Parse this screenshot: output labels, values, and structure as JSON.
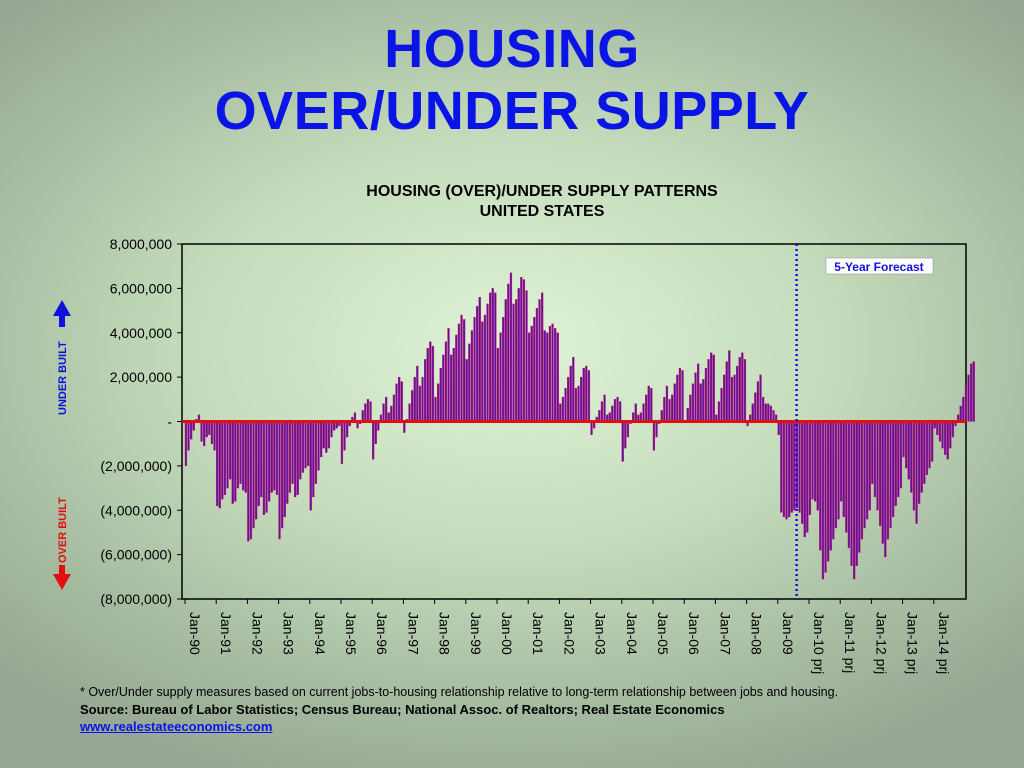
{
  "slide": {
    "title_line1": "HOUSING",
    "title_line2": "OVER/UNDER SUPPLY"
  },
  "side_labels": {
    "under_built": "UNDER BUILT",
    "over_built": "OVER BUILT",
    "under_color": "#1010dd",
    "over_color": "#e01010"
  },
  "footer": {
    "note": "* Over/Under supply measures based on current jobs-to-housing relationship relative to long-term relationship between jobs and housing.",
    "source": "Source: Bureau of Labor Statistics; Census Bureau; National Assoc. of Realtors; Real Estate Economics",
    "link": "www.realestateeconomics.com"
  },
  "chart_data": {
    "type": "bar",
    "title": "HOUSING (OVER)/UNDER SUPPLY PATTERNS",
    "subtitle": "UNITED STATES",
    "ylim": [
      -8000000,
      8000000
    ],
    "y_ticks": [
      8000000,
      6000000,
      4000000,
      2000000,
      0,
      -2000000,
      -4000000,
      -6000000,
      -8000000
    ],
    "y_tick_labels": [
      "8,000,000",
      "6,000,000",
      "4,000,000",
      "2,000,000",
      "-",
      "(2,000,000)",
      "(4,000,000)",
      "(6,000,000)",
      "(8,000,000)"
    ],
    "x_tick_labels": [
      "Jan-90",
      "Jan-91",
      "Jan-92",
      "Jan-93",
      "Jan-94",
      "Jan-95",
      "Jan-96",
      "Jan-97",
      "Jan-98",
      "Jan-99",
      "Jan-00",
      "Jan-01",
      "Jan-02",
      "Jan-03",
      "Jan-04",
      "Jan-05",
      "Jan-06",
      "Jan-07",
      "Jan-08",
      "Jan-09",
      "Jan-10 prj",
      "Jan-11 prj",
      "Jan-12 prj",
      "Jan-13 prj",
      "Jan-14 prj"
    ],
    "annotation": "5-Year Forecast",
    "forecast_start": "Sep-09",
    "bar_color": "#5a12a8",
    "zero_line_color": "#e01010",
    "grid": false,
    "series": [
      {
        "values": [
          -2000000,
          -1300000,
          -800000,
          -400000,
          100000,
          300000,
          -900000,
          -1100000,
          -700000,
          -600000,
          -1000000,
          -1300000,
          -3800000,
          -3900000,
          -3500000,
          -3300000,
          -3000000,
          -2600000,
          -3700000,
          -3600000,
          -3000000,
          -2800000,
          -3100000,
          -3200000,
          -5400000,
          -5300000,
          -4800000,
          -4400000,
          -3800000,
          -3400000,
          -4200000,
          -4100000,
          -3600000,
          -3200000,
          -3100000,
          -3300000,
          -5300000,
          -4800000,
          -4300000,
          -3700000,
          -3200000,
          -2800000,
          -3400000,
          -3300000,
          -2600000,
          -2300000,
          -2100000,
          -2000000,
          -4000000,
          -3400000,
          -2800000,
          -2200000,
          -1600000,
          -1200000,
          -1400000,
          -1200000,
          -700000,
          -400000,
          -300000,
          -200000,
          -1900000,
          -1300000,
          -700000,
          -200000,
          200000,
          400000,
          -300000,
          -100000,
          500000,
          800000,
          1000000,
          900000,
          -1700000,
          -1000000,
          -400000,
          300000,
          800000,
          1100000,
          400000,
          700000,
          1200000,
          1700000,
          2000000,
          1800000,
          -500000,
          100000,
          800000,
          1400000,
          2000000,
          2500000,
          1600000,
          2000000,
          2800000,
          3300000,
          3600000,
          3400000,
          1100000,
          1700000,
          2400000,
          3000000,
          3600000,
          4200000,
          3000000,
          3300000,
          3900000,
          4400000,
          4800000,
          4600000,
          2800000,
          3500000,
          4100000,
          4700000,
          5200000,
          5600000,
          4500000,
          4800000,
          5300000,
          5800000,
          6000000,
          5800000,
          3300000,
          4000000,
          4700000,
          5500000,
          6200000,
          6700000,
          5300000,
          5500000,
          6000000,
          6500000,
          6400000,
          5900000,
          4000000,
          4300000,
          4700000,
          5100000,
          5500000,
          5800000,
          4100000,
          4000000,
          4300000,
          4400000,
          4200000,
          4000000,
          800000,
          1100000,
          1500000,
          2000000,
          2500000,
          2900000,
          1500000,
          1600000,
          2000000,
          2400000,
          2500000,
          2300000,
          -600000,
          -300000,
          200000,
          500000,
          900000,
          1200000,
          300000,
          400000,
          700000,
          1000000,
          1100000,
          900000,
          -1800000,
          -1200000,
          -700000,
          -100000,
          400000,
          800000,
          300000,
          400000,
          800000,
          1200000,
          1600000,
          1500000,
          -1300000,
          -700000,
          -100000,
          500000,
          1100000,
          1600000,
          1000000,
          1200000,
          1700000,
          2100000,
          2400000,
          2300000,
          0,
          600000,
          1200000,
          1700000,
          2200000,
          2600000,
          1700000,
          1900000,
          2400000,
          2800000,
          3100000,
          3000000,
          300000,
          900000,
          1500000,
          2100000,
          2700000,
          3200000,
          2000000,
          2100000,
          2500000,
          2900000,
          3100000,
          2800000,
          -200000,
          300000,
          800000,
          1300000,
          1800000,
          2100000,
          1100000,
          800000,
          800000,
          700000,
          500000,
          300000,
          -600000,
          -4100000,
          -4300000,
          -4400000,
          -4300000,
          -4100000,
          -4000000,
          -3900000,
          -4100000,
          -4600000,
          -5200000,
          -5000000,
          -4200000,
          -3500000,
          -3600000,
          -4000000,
          -5800000,
          -7100000,
          -6800000,
          -6300000,
          -5800000,
          -5300000,
          -4800000,
          -4400000,
          -3600000,
          -4300000,
          -5000000,
          -5700000,
          -6500000,
          -7100000,
          -6500000,
          -5900000,
          -5300000,
          -4800000,
          -4400000,
          -4000000,
          -2800000,
          -3400000,
          -4000000,
          -4700000,
          -5500000,
          -6100000,
          -5300000,
          -4800000,
          -4300000,
          -3800000,
          -3400000,
          -3000000,
          -1600000,
          -2100000,
          -2600000,
          -3200000,
          -4000000,
          -4600000,
          -3700000,
          -3200000,
          -2800000,
          -2400000,
          -2100000,
          -1800000,
          -300000,
          -600000,
          -900000,
          -1200000,
          -1500000,
          -1700000,
          -1200000,
          -700000,
          -200000,
          300000,
          700000,
          1100000,
          1600000,
          2100000,
          2600000,
          2700000
        ]
      }
    ]
  }
}
